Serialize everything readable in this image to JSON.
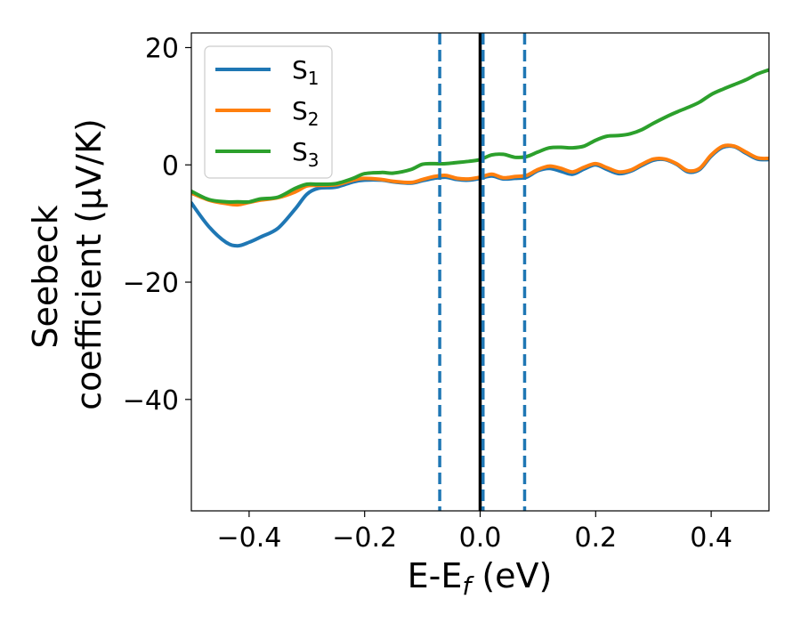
{
  "chart_data": {
    "type": "line",
    "title": "",
    "xlabel": "E-E_f (eV)",
    "xlabel_parts": {
      "main": "E-E",
      "sub": "f",
      "tail": " (eV)"
    },
    "ylabel_line1": "Seebeck",
    "ylabel_line2": "coefficient  (μV/K)",
    "xlim": [
      -0.5,
      0.5
    ],
    "ylim": [
      -59,
      22.5
    ],
    "xticks": [
      -0.4,
      -0.2,
      0.0,
      0.2,
      0.4
    ],
    "xtick_labels": [
      "−0.4",
      "−0.2",
      "0.0",
      "0.2",
      "0.4"
    ],
    "yticks": [
      -40,
      -20,
      0,
      20
    ],
    "ytick_labels": [
      "−40",
      "−20",
      "0",
      "20"
    ],
    "grid": false,
    "legend_placement": "top-left",
    "vlines": [
      {
        "x": -0.07,
        "style": "dashed",
        "color": "#1f77b4"
      },
      {
        "x": 0.0,
        "style": "solid",
        "color": "#000000"
      },
      {
        "x": 0.005,
        "style": "dashed",
        "color": "#1f77b4"
      },
      {
        "x": 0.077,
        "style": "dashed",
        "color": "#1f77b4"
      }
    ],
    "series": [
      {
        "name": "S1",
        "name_main": "S",
        "name_sub": "1",
        "color": "#1f77b4",
        "x": [
          -0.5,
          -0.47,
          -0.44,
          -0.42,
          -0.4,
          -0.38,
          -0.35,
          -0.32,
          -0.3,
          -0.28,
          -0.25,
          -0.22,
          -0.2,
          -0.17,
          -0.15,
          -0.12,
          -0.1,
          -0.08,
          -0.06,
          -0.04,
          -0.02,
          0.0,
          0.02,
          0.04,
          0.06,
          0.08,
          0.1,
          0.12,
          0.14,
          0.16,
          0.18,
          0.2,
          0.22,
          0.24,
          0.26,
          0.28,
          0.3,
          0.32,
          0.34,
          0.36,
          0.38,
          0.4,
          0.42,
          0.44,
          0.46,
          0.48,
          0.5
        ],
        "values": [
          -6.5,
          -10.5,
          -13.2,
          -13.8,
          -13.2,
          -12.3,
          -10.8,
          -7.5,
          -5.0,
          -4.0,
          -3.8,
          -2.9,
          -2.6,
          -2.6,
          -2.9,
          -3.1,
          -2.7,
          -2.3,
          -2.1,
          -2.5,
          -2.6,
          -2.3,
          -1.9,
          -2.4,
          -2.3,
          -2.1,
          -1.0,
          -0.6,
          -1.1,
          -1.6,
          -0.7,
          0.0,
          -0.8,
          -1.5,
          -1.1,
          -0.1,
          0.8,
          0.9,
          0.1,
          -1.2,
          -0.8,
          1.5,
          3.0,
          3.1,
          2.0,
          1.0,
          0.9
        ]
      },
      {
        "name": "S2",
        "name_main": "S",
        "name_sub": "2",
        "color": "#ff7f0e",
        "x": [
          -0.5,
          -0.47,
          -0.44,
          -0.42,
          -0.4,
          -0.38,
          -0.35,
          -0.32,
          -0.3,
          -0.28,
          -0.25,
          -0.22,
          -0.2,
          -0.17,
          -0.15,
          -0.12,
          -0.1,
          -0.08,
          -0.06,
          -0.04,
          -0.02,
          0.0,
          0.02,
          0.04,
          0.06,
          0.08,
          0.1,
          0.12,
          0.14,
          0.16,
          0.18,
          0.2,
          0.22,
          0.24,
          0.26,
          0.28,
          0.3,
          0.32,
          0.34,
          0.36,
          0.38,
          0.4,
          0.42,
          0.44,
          0.46,
          0.48,
          0.5
        ],
        "values": [
          -4.8,
          -6.0,
          -6.6,
          -6.8,
          -6.4,
          -6.0,
          -5.6,
          -4.6,
          -3.6,
          -3.5,
          -3.4,
          -2.6,
          -2.3,
          -2.5,
          -2.8,
          -3.0,
          -2.5,
          -2.0,
          -1.8,
          -2.3,
          -2.4,
          -2.1,
          -1.6,
          -2.2,
          -2.0,
          -1.8,
          -0.8,
          -0.2,
          -0.6,
          -1.2,
          -0.4,
          0.2,
          -0.5,
          -1.2,
          -0.9,
          0.1,
          1.0,
          1.0,
          0.2,
          -1.0,
          -0.6,
          1.7,
          3.2,
          3.2,
          2.2,
          1.2,
          1.1
        ]
      },
      {
        "name": "S3",
        "name_main": "S",
        "name_sub": "3",
        "color": "#2ca02c",
        "x": [
          -0.5,
          -0.47,
          -0.44,
          -0.42,
          -0.4,
          -0.38,
          -0.35,
          -0.32,
          -0.3,
          -0.28,
          -0.25,
          -0.22,
          -0.2,
          -0.17,
          -0.15,
          -0.12,
          -0.1,
          -0.08,
          -0.06,
          -0.04,
          -0.02,
          0.0,
          0.02,
          0.04,
          0.06,
          0.08,
          0.1,
          0.12,
          0.14,
          0.16,
          0.18,
          0.2,
          0.22,
          0.24,
          0.26,
          0.28,
          0.3,
          0.32,
          0.34,
          0.36,
          0.38,
          0.4,
          0.42,
          0.44,
          0.46,
          0.48,
          0.5
        ],
        "values": [
          -4.5,
          -5.9,
          -6.3,
          -6.3,
          -6.3,
          -5.8,
          -5.5,
          -4.0,
          -3.3,
          -3.3,
          -3.2,
          -2.3,
          -1.5,
          -1.3,
          -1.4,
          -0.8,
          0.1,
          0.2,
          0.2,
          0.4,
          0.6,
          0.9,
          1.7,
          1.8,
          1.3,
          1.4,
          2.2,
          2.9,
          3.0,
          2.9,
          3.2,
          4.2,
          4.9,
          5.0,
          5.3,
          6.0,
          7.1,
          8.1,
          9.0,
          9.8,
          10.7,
          12.0,
          12.9,
          13.7,
          14.5,
          15.5,
          16.2
        ]
      }
    ]
  }
}
